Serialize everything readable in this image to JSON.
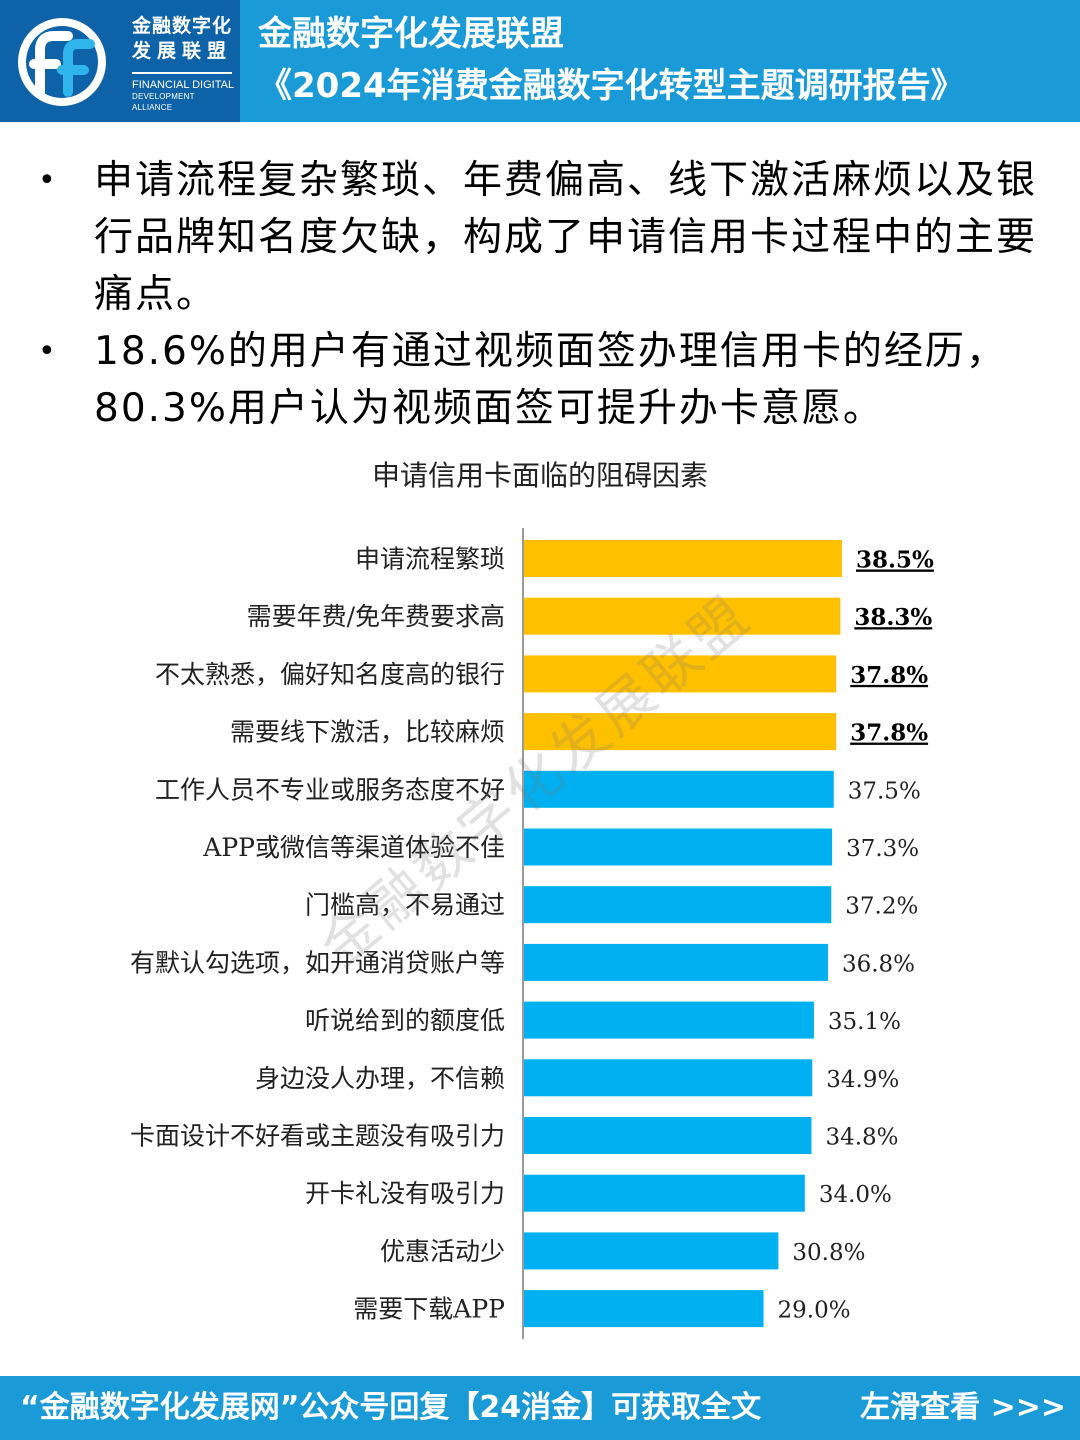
{
  "header": {
    "logo_cn_line1": "金融数字化",
    "logo_cn_line2": "发展联盟",
    "logo_en_line1": "FINANCIAL DIGITAL",
    "logo_en_line2": "DEVELOPMENT ALLIANCE",
    "title": "金融数字化发展联盟",
    "subtitle": "《2024年消费金融数字化转型主题调研报告》"
  },
  "bullets": [
    "申请流程复杂繁琐、年费偏高、线下激活麻烦以及银行品牌知名度欠缺，构成了申请信用卡过程中的主要痛点。",
    "18.6%的用户有通过视频面签办理信用卡的经历，80.3%用户认为视频面签可提升办卡意愿。"
  ],
  "watermark": "金融数字化发展联盟",
  "chart_data": {
    "type": "bar",
    "orientation": "horizontal",
    "title": "申请信用卡面临的阻碍因素",
    "categories": [
      "申请流程繁琐",
      "需要年费/免年费要求高",
      "不太熟悉，偏好知名度高的银行",
      "需要线下激活，比较麻烦",
      "工作人员不专业或服务态度不好",
      "APP或微信等渠道体验不佳",
      "门槛高，不易通过",
      "有默认勾选项，如开通消贷账户等",
      "听说给到的额度低",
      "身边没人办理，不信赖",
      "卡面设计不好看或主题没有吸引力",
      "开卡礼没有吸引力",
      "优惠活动少",
      "需要下载APP"
    ],
    "values": [
      38.5,
      38.3,
      37.8,
      37.8,
      37.5,
      37.3,
      37.2,
      36.8,
      35.1,
      34.9,
      34.8,
      34.0,
      30.8,
      29.0
    ],
    "value_labels": [
      "38.5%",
      "38.3%",
      "37.8%",
      "37.8%",
      "37.5%",
      "37.3%",
      "37.2%",
      "36.8%",
      "35.1%",
      "34.9%",
      "34.8%",
      "34.0%",
      "30.8%",
      "29.0%"
    ],
    "highlight_top": 4,
    "colors": {
      "highlight": "#ffc000",
      "normal": "#00b0f0",
      "axis": "#9a9a9a"
    },
    "xlim": [
      0,
      45
    ],
    "grid": false,
    "legend": "none"
  },
  "footer": {
    "left": "“金融数字化发展网”公众号回复【24消金】可获取全文",
    "right": "左滑查看 >>>"
  }
}
